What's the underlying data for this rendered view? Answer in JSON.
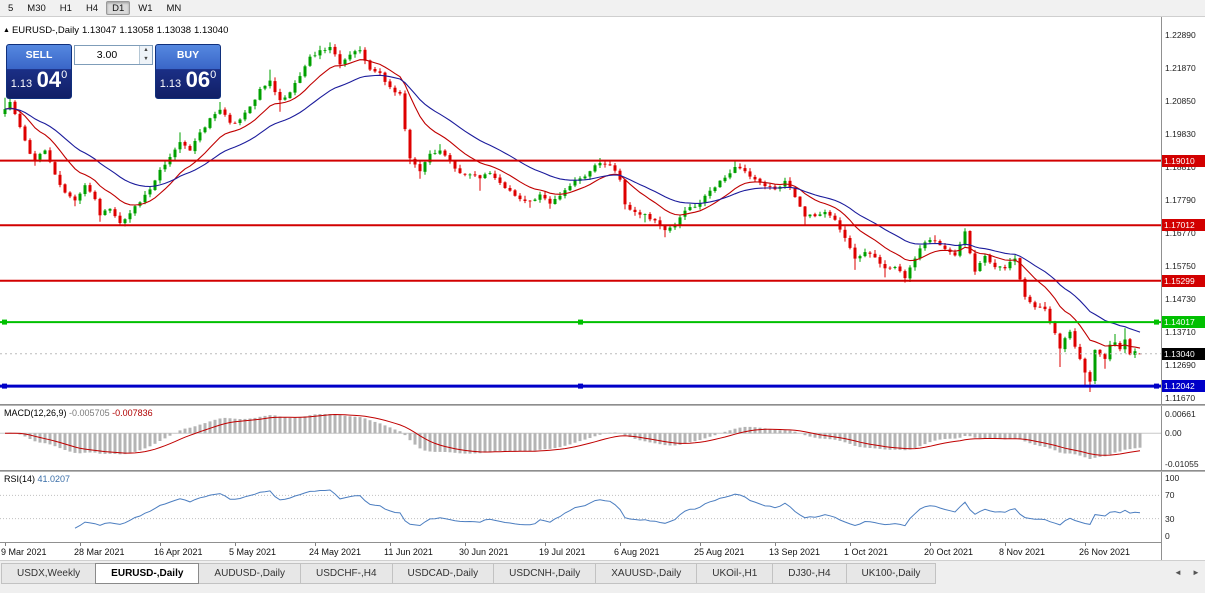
{
  "toolbar": {
    "periods": [
      {
        "label": "5",
        "active": false
      },
      {
        "label": "M30",
        "active": false
      },
      {
        "label": "H1",
        "active": false
      },
      {
        "label": "H4",
        "active": false
      },
      {
        "label": "D1",
        "active": true
      },
      {
        "label": "W1",
        "active": false
      },
      {
        "label": "MN",
        "active": false
      }
    ]
  },
  "quote_strip": {
    "title": "EURUSD-,Daily",
    "open": "1.13047",
    "high": "1.13058",
    "low": "1.13038",
    "close": "1.13040"
  },
  "trade_panel": {
    "sell_label": "SELL",
    "buy_label": "BUY",
    "lot_value": "3.00",
    "sell_price": {
      "prefix": "1.13",
      "big": "04",
      "sup": "0"
    },
    "buy_price": {
      "prefix": "1.13",
      "big": "06",
      "sup": "0"
    }
  },
  "icons": {
    "collapse": "▲",
    "spin_up": "▲",
    "spin_down": "▼",
    "tab_scroll_left": "◄",
    "tab_scroll_right": "►"
  },
  "price_axis_ticks": [
    "1.22890",
    "1.21870",
    "1.20850",
    "1.19830",
    "1.18810",
    "1.17790",
    "1.16770",
    "1.15750",
    "1.14730",
    "1.13710",
    "1.12690",
    "1.11670"
  ],
  "hlines": [
    {
      "price": 1.1901,
      "label": "1.19010",
      "color": "#D20000",
      "width": 2,
      "handles": false
    },
    {
      "price": 1.17012,
      "label": "1.17012",
      "color": "#D20000",
      "width": 2,
      "handles": false
    },
    {
      "price": 1.15299,
      "label": "1.15299",
      "color": "#D20000",
      "width": 2,
      "handles": false
    },
    {
      "price": 1.14017,
      "label": "1.14017",
      "color": "#00C000",
      "width": 2,
      "handles": true
    },
    {
      "price": 1.12042,
      "label": "1.12042",
      "color": "#0000C8",
      "width": 3,
      "handles": true
    }
  ],
  "current_price": {
    "value": 1.1304,
    "label": "1.13040",
    "color": "#000000"
  },
  "macd_panel": {
    "name": "MACD(12,26,9)",
    "main_value": "-0.005705",
    "signal_value": "-0.007836",
    "axis_max": "0.00661",
    "axis_zero": "0.00",
    "axis_min": "-0.01055",
    "fast": 12,
    "slow": 26,
    "signal": 9
  },
  "rsi_panel": {
    "name": "RSI(14)",
    "value": "41.0207",
    "period": 14,
    "axis": [
      "100",
      "70",
      "30",
      "0"
    ],
    "levels": [
      70,
      30
    ]
  },
  "date_axis": [
    {
      "label": "9 Mar 2021",
      "bar": 0
    },
    {
      "label": "28 Mar 2021",
      "bar": 15
    },
    {
      "label": "16 Apr 2021",
      "bar": 31
    },
    {
      "label": "5 May 2021",
      "bar": 46
    },
    {
      "label": "24 May 2021",
      "bar": 62
    },
    {
      "label": "11 Jun 2021",
      "bar": 77
    },
    {
      "label": "30 Jun 2021",
      "bar": 92
    },
    {
      "label": "19 Jul 2021",
      "bar": 108
    },
    {
      "label": "6 Aug 2021",
      "bar": 123
    },
    {
      "label": "25 Aug 2021",
      "bar": 139
    },
    {
      "label": "13 Sep 2021",
      "bar": 154
    },
    {
      "label": "1 Oct 2021",
      "bar": 169
    },
    {
      "label": "20 Oct 2021",
      "bar": 185
    },
    {
      "label": "8 Nov 2021",
      "bar": 200
    },
    {
      "label": "26 Nov 2021",
      "bar": 216
    }
  ],
  "tabs": {
    "items": [
      {
        "label": "USDX,Weekly",
        "active": false
      },
      {
        "label": "EURUSD-,Daily",
        "active": true
      },
      {
        "label": "AUDUSD-,Daily",
        "active": false
      },
      {
        "label": "USDCHF-,H4",
        "active": false
      },
      {
        "label": "USDCAD-,Daily",
        "active": false
      },
      {
        "label": "USDCNH-,Daily",
        "active": false
      },
      {
        "label": "XAUUSD-,Daily",
        "active": false
      },
      {
        "label": "UKOil-,H1",
        "active": false
      },
      {
        "label": "DJ30-,H4",
        "active": false
      },
      {
        "label": "UK100-,Daily",
        "active": false
      }
    ]
  },
  "colors": {
    "up": "#00A000",
    "down": "#DE0000",
    "ma_fast": "#C00000",
    "ma_slow": "#1C1C9C",
    "rsi_line": "#4C7EC0",
    "macd_hist": "#B4B4B4",
    "macd_signal": "#C00000"
  },
  "chart_data": {
    "type": "candlestick",
    "symbol": "EURUSD-",
    "timeframe": "Daily",
    "bar_count": 228,
    "first_open": 1.2045,
    "last_bar": {
      "open": 1.13047,
      "high": 1.13058,
      "low": 1.13038,
      "close": 1.1304
    },
    "anchors": [
      [
        0,
        1.206,
        1.2095,
        null
      ],
      [
        1,
        1.2082,
        1.2105,
        null
      ],
      [
        3,
        1.2005
      ],
      [
        5,
        1.1922
      ],
      [
        6,
        1.1902,
        null,
        1.1885
      ],
      [
        8,
        1.1932
      ],
      [
        10,
        1.1858
      ],
      [
        12,
        1.1802
      ],
      [
        14,
        1.1778,
        null,
        1.176
      ],
      [
        16,
        1.1825
      ],
      [
        18,
        1.1782
      ],
      [
        19,
        1.1732,
        null,
        1.1712
      ],
      [
        21,
        1.1752
      ],
      [
        23,
        1.1708,
        null,
        1.17
      ],
      [
        25,
        1.1738
      ],
      [
        27,
        1.1772
      ],
      [
        29,
        1.1812
      ],
      [
        31,
        1.1872
      ],
      [
        33,
        1.1912
      ],
      [
        35,
        1.1958,
        1.1988,
        null
      ],
      [
        37,
        1.1932
      ],
      [
        39,
        1.1988
      ],
      [
        41,
        1.2032
      ],
      [
        43,
        1.2058,
        1.2082,
        null
      ],
      [
        45,
        1.2018
      ],
      [
        47,
        1.2028
      ],
      [
        49,
        1.2068
      ],
      [
        51,
        1.2122
      ],
      [
        53,
        1.2148,
        1.2182,
        null
      ],
      [
        55,
        1.2088,
        null,
        1.2052
      ],
      [
        57,
        1.2112
      ],
      [
        59,
        1.2162
      ],
      [
        61,
        1.2222
      ],
      [
        63,
        1.2242,
        1.2256,
        null
      ],
      [
        65,
        1.2252,
        1.2266,
        null
      ],
      [
        67,
        1.2198
      ],
      [
        69,
        1.2228
      ],
      [
        71,
        1.2242,
        1.2254,
        null
      ],
      [
        73,
        1.2182
      ],
      [
        75,
        1.2172
      ],
      [
        77,
        1.2128
      ],
      [
        79,
        1.2108
      ],
      [
        80,
        1.1998
      ],
      [
        81,
        1.1908,
        null,
        1.189
      ],
      [
        83,
        1.1868,
        null,
        1.1845
      ],
      [
        85,
        1.1922
      ],
      [
        87,
        1.1932,
        1.1952,
        null
      ],
      [
        89,
        1.1898
      ],
      [
        91,
        1.1862
      ],
      [
        93,
        1.1858
      ],
      [
        95,
        1.1846,
        null,
        1.1808
      ],
      [
        97,
        1.1862
      ],
      [
        99,
        1.1832
      ],
      [
        101,
        1.1808
      ],
      [
        103,
        1.1782
      ],
      [
        105,
        1.1776,
        null,
        1.1755
      ],
      [
        107,
        1.1796
      ],
      [
        109,
        1.1768,
        null,
        1.1752
      ],
      [
        111,
        1.1792
      ],
      [
        113,
        1.1822
      ],
      [
        115,
        1.1846
      ],
      [
        117,
        1.1868
      ],
      [
        119,
        1.1893,
        1.1909,
        null
      ],
      [
        121,
        1.1886
      ],
      [
        123,
        1.1842
      ],
      [
        124,
        1.1766,
        null,
        1.175
      ],
      [
        126,
        1.1742
      ],
      [
        128,
        1.1736,
        null,
        1.171
      ],
      [
        130,
        1.1716
      ],
      [
        132,
        1.1686,
        null,
        1.1664
      ],
      [
        134,
        1.1702
      ],
      [
        136,
        1.1746
      ],
      [
        138,
        1.1758
      ],
      [
        140,
        1.1792
      ],
      [
        142,
        1.1818
      ],
      [
        144,
        1.1848
      ],
      [
        146,
        1.1881,
        1.1899,
        null
      ],
      [
        148,
        1.1868
      ],
      [
        150,
        1.1843
      ],
      [
        152,
        1.1822
      ],
      [
        154,
        1.1812
      ],
      [
        156,
        1.1838,
        1.1848,
        null
      ],
      [
        158,
        1.1788
      ],
      [
        160,
        1.1728,
        null,
        1.17
      ],
      [
        162,
        1.1729
      ],
      [
        164,
        1.1742
      ],
      [
        166,
        1.1718
      ],
      [
        168,
        1.1662
      ],
      [
        170,
        1.1598,
        null,
        1.1563
      ],
      [
        172,
        1.1618
      ],
      [
        174,
        1.1602
      ],
      [
        176,
        1.1568,
        null,
        1.154
      ],
      [
        178,
        1.1572
      ],
      [
        180,
        1.1538,
        null,
        1.1524
      ],
      [
        182,
        1.1598
      ],
      [
        184,
        1.1648
      ],
      [
        186,
        1.1653,
        1.167,
        null
      ],
      [
        188,
        1.1628
      ],
      [
        190,
        1.1608
      ],
      [
        192,
        1.1682,
        1.1692,
        null
      ],
      [
        194,
        1.1558
      ],
      [
        196,
        1.1606
      ],
      [
        198,
        1.1572
      ],
      [
        200,
        1.1568
      ],
      [
        202,
        1.1598,
        1.1609,
        null
      ],
      [
        204,
        1.148
      ],
      [
        206,
        1.1448
      ],
      [
        208,
        1.1442,
        1.1464,
        null
      ],
      [
        210,
        1.1368
      ],
      [
        211,
        1.132,
        null,
        1.1263
      ],
      [
        213,
        1.1372
      ],
      [
        215,
        1.1288
      ],
      [
        216,
        1.1246,
        null,
        1.1205
      ],
      [
        217,
        1.1218,
        null,
        1.1186
      ],
      [
        218,
        1.1316
      ],
      [
        219,
        1.1302
      ],
      [
        220,
        1.1288,
        null,
        1.1258
      ],
      [
        221,
        1.1332
      ],
      [
        222,
        1.1339,
        1.1365,
        null
      ],
      [
        223,
        1.1318
      ],
      [
        224,
        1.1348,
        1.1383,
        null
      ],
      [
        225,
        1.1302
      ],
      [
        226,
        1.1312
      ],
      [
        227,
        1.1304,
        1.13058,
        1.13038
      ]
    ]
  }
}
